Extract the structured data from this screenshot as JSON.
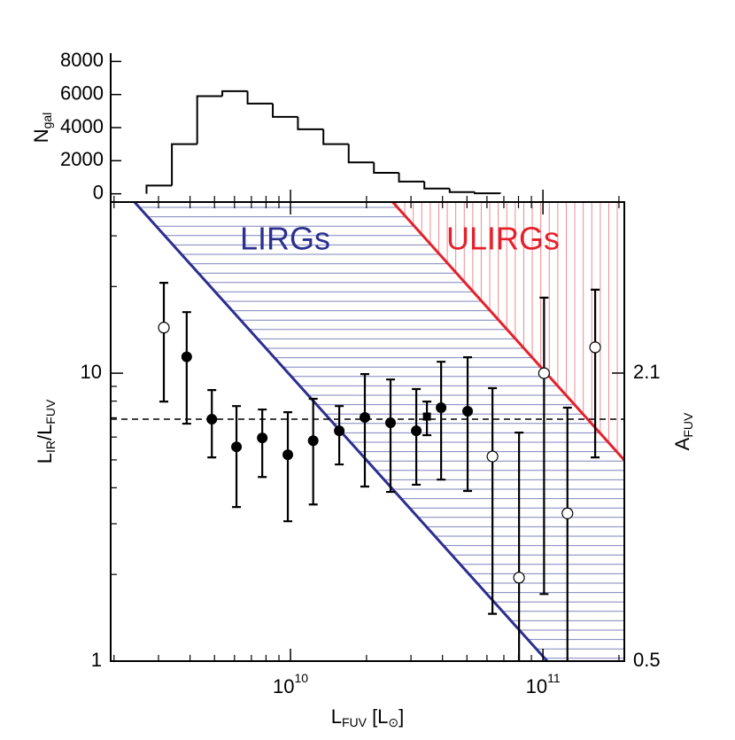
{
  "chart_data": [
    {
      "type": "histogram",
      "ylabel": [
        "N",
        "gal"
      ],
      "bins": [
        2690000000,
        3390000000,
        4270000000,
        5370000000,
        6760000000,
        8510000000,
        10700000000,
        13500000000,
        17000000000,
        21400000000,
        26900000000,
        33900000000,
        42700000000,
        53700000000,
        67600000000
      ],
      "counts": [
        500,
        3000,
        5900,
        6200,
        5450,
        4650,
        3900,
        3000,
        1900,
        1270,
        740,
        320,
        100,
        30
      ],
      "color": "#000000",
      "xlog": true,
      "xlim": [
        1940000000,
        210000000000
      ],
      "ylim": [
        -500,
        8500
      ],
      "yticks": [
        0,
        2000,
        4000,
        6000,
        8000
      ]
    },
    {
      "type": "scatter",
      "xlabel": [
        "L",
        "FUV",
        " [L",
        "⊙",
        "]"
      ],
      "ylabel": [
        "L",
        "IR",
        "/L",
        "FUV"
      ],
      "y2label": [
        "A",
        "FUV"
      ],
      "xlog": true,
      "ylog": true,
      "xlim": [
        1940000000,
        210000000000
      ],
      "xticks": [
        {
          "value": 10000000000,
          "label": "10",
          "exp": "10"
        },
        {
          "value": 100000000000,
          "label": "10",
          "exp": "11"
        }
      ],
      "xminorticks": [
        2000000000,
        3000000000,
        4000000000,
        5000000000,
        6000000000,
        7000000000,
        8000000000,
        9000000000,
        20000000000,
        30000000000,
        40000000000,
        50000000000,
        60000000000,
        70000000000,
        80000000000,
        90000000000,
        200000000000
      ],
      "ylim": [
        1,
        39.3
      ],
      "yticks": [
        1,
        10
      ],
      "yminorticks": [
        2,
        3,
        4,
        5,
        6,
        7,
        8,
        9,
        20,
        30
      ],
      "y2lim": [
        0.5,
        3.05
      ],
      "y2ticks": [
        0.5,
        2.1
      ],
      "reference_line": 6.92,
      "series": [
        {
          "marker": "filled",
          "color": "#000000",
          "x": [
            3880000000,
            4880000000,
            6110000000,
            7730000000,
            9760000000,
            12300000000,
            15600000000,
            19700000000,
            24900000000,
            31500000000,
            39500000000,
            50300000000
          ],
          "values": [
            11.4,
            6.92,
            5.55,
            5.96,
            5.21,
            5.83,
            6.31,
            7.02,
            6.73,
            6.31,
            7.59,
            7.38
          ],
          "lower": [
            6.68,
            5.1,
            3.43,
            4.36,
            3.06,
            3.5,
            4.82,
            4.04,
            3.87,
            4.1,
            4.27,
            3.9
          ],
          "upper": [
            16.3,
            8.74,
            7.69,
            7.48,
            7.32,
            8.15,
            7.69,
            9.93,
            9.51,
            8.81,
            10.96,
            11.36
          ]
        },
        {
          "marker": "square",
          "color": "#000000",
          "x": [
            34700000000
          ],
          "values": [
            7.07
          ],
          "lower": [
            6.09
          ],
          "upper": [
            7.97
          ]
        },
        {
          "marker": "open",
          "color": "#000000",
          "x": [
            3150000000,
            63100000000,
            80400000000,
            101000000000,
            125000000000,
            161000000000
          ],
          "values": [
            14.4,
            5.14,
            1.95,
            10.0,
            3.26,
            12.3
          ],
          "lower": [
            7.97,
            1.46,
            0.8,
            1.71,
            0.8,
            5.1
          ],
          "upper": [
            20.6,
            8.87,
            6.22,
            18.3,
            7.59,
            19.5
          ]
        }
      ],
      "annotations": [
        {
          "text": "LIRGs",
          "color": "#2b2f8f",
          "hatch_color": "#7f84bb",
          "x": [
            2410000000,
            104000000000
          ],
          "values": [
            39.3,
            1
          ]
        },
        {
          "text": "ULIRGs",
          "color": "#e5202a",
          "hatch_color": "#f08a8e",
          "x": [
            25400000000,
            210000000000
          ],
          "values": [
            39.3,
            4.99
          ]
        }
      ]
    }
  ]
}
